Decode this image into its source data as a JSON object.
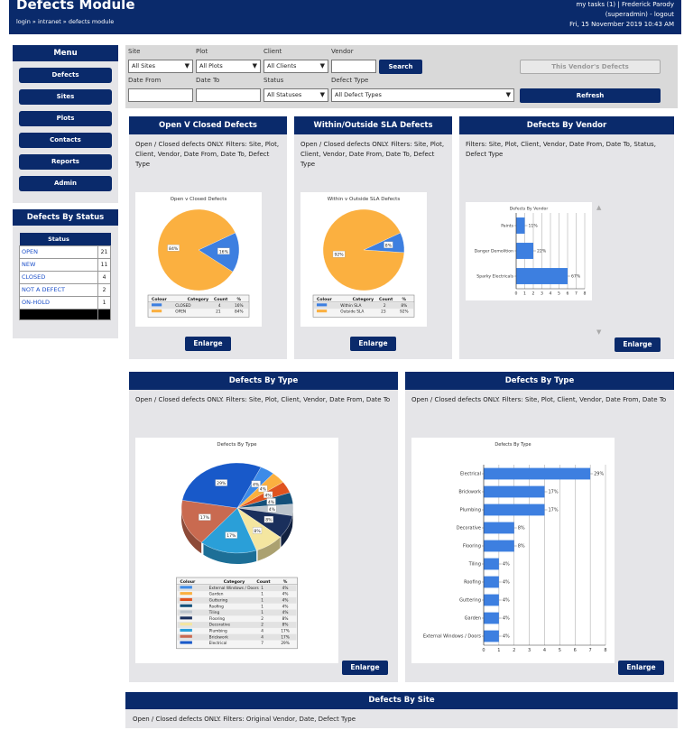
{
  "header": {
    "title": "Defects Module",
    "breadcrumb": "login » intranet » defects module",
    "tasks_user": "my tasks (1) | Frederick Parody",
    "role": "(superadmin) - logout",
    "datetime": "Fri, 15 November 2019 10:43 AM"
  },
  "menu": {
    "title": "Menu",
    "items": [
      "Defects",
      "Sites",
      "Plots",
      "Contacts",
      "Reports",
      "Admin"
    ]
  },
  "by_status": {
    "title": "Defects By Status",
    "header": "Status",
    "rows": [
      {
        "label": "OPEN",
        "count": "21"
      },
      {
        "label": "NEW",
        "count": "11"
      },
      {
        "label": "CLOSED",
        "count": "4"
      },
      {
        "label": "NOT A DEFECT",
        "count": "2"
      },
      {
        "label": "ON-HOLD",
        "count": "1"
      }
    ]
  },
  "filters": {
    "site_label": "Site",
    "site_value": "All Sites",
    "plot_label": "Plot",
    "plot_value": "All Plots",
    "client_label": "Client",
    "client_value": "All Clients",
    "vendor_label": "Vendor",
    "search": "Search",
    "vendor_defects": "This Vendor's Defects",
    "date_from_label": "Date From",
    "date_to_label": "Date To",
    "status_label": "Status",
    "status_value": "All Statuses",
    "type_label": "Defect Type",
    "type_value": "All Defect Types",
    "refresh": "Refresh"
  },
  "panels": {
    "ovc": {
      "title": "Open V Closed Defects",
      "desc": "Open / Closed defects ONLY. Filters: Site, Plot, Client, Vendor, Date From, Date To, Defect Type",
      "enlarge": "Enlarge"
    },
    "sla": {
      "title": "Within/Outside SLA Defects",
      "desc": "Open / Closed defects ONLY. Filters: Site, Plot, Client, Vendor, Date From, Date To, Defect Type",
      "enlarge": "Enlarge"
    },
    "vendor": {
      "title": "Defects By Vendor",
      "desc": "Filters: Site, Plot, Client, Vendor, Date From, Date To, Status, Defect Type",
      "enlarge": "Enlarge"
    },
    "type_pie": {
      "title": "Defects By Type",
      "desc": "Open / Closed defects ONLY. Filters: Site, Plot, Client, Vendor, Date From, Date To",
      "enlarge": "Enlarge"
    },
    "type_bar": {
      "title": "Defects By Type",
      "desc": "Open / Closed defects ONLY. Filters: Site, Plot, Client, Vendor, Date From, Date To",
      "enlarge": "Enlarge"
    },
    "site": {
      "title": "Defects By Site",
      "desc": "Open / Closed defects ONLY. Filters: Original Vendor, Date, Defect Type"
    }
  },
  "legend_headers": {
    "colour": "Colour",
    "category": "Category",
    "count": "Count",
    "pct": "%"
  },
  "chart_data": [
    {
      "type": "pie",
      "title": "Open v Closed Defects",
      "labels": [
        "CLOSED",
        "OPEN"
      ],
      "values": [
        4,
        21
      ],
      "percents": [
        "16%",
        "84%"
      ],
      "colors": [
        "#3d7fe0",
        "#fbb040"
      ]
    },
    {
      "type": "pie",
      "title": "Within v Outside SLA Defects",
      "labels": [
        "Within SLA",
        "Outside SLA"
      ],
      "values": [
        2,
        23
      ],
      "percents": [
        "8%",
        "92%"
      ],
      "colors": [
        "#3d7fe0",
        "#fbb040"
      ]
    },
    {
      "type": "bar",
      "title": "Defects By Vendor",
      "categories": [
        "Paints",
        "Danger Demolition",
        "Sparky Electricals"
      ],
      "values": [
        1,
        2,
        6
      ],
      "labels": [
        "11%",
        "22%",
        "67%"
      ],
      "xlim": [
        0,
        8
      ],
      "ticks": [
        0,
        1,
        2,
        3,
        4,
        5,
        6,
        7,
        8
      ],
      "color": "#3d7fe0"
    },
    {
      "type": "pie",
      "title": "Defects By Type",
      "labels": [
        "External Windows / Doors",
        "Garden",
        "Guttering",
        "Roofing",
        "Tiling",
        "Flooring",
        "Decorative",
        "Plumbing",
        "Brickwork",
        "Electrical"
      ],
      "values": [
        1,
        1,
        1,
        1,
        1,
        2,
        2,
        4,
        4,
        7
      ],
      "percents": [
        "4%",
        "4%",
        "4%",
        "4%",
        "4%",
        "8%",
        "8%",
        "17%",
        "17%",
        "29%"
      ],
      "colors": [
        "#3d8be8",
        "#fbb040",
        "#e0531f",
        "#14507a",
        "#bcc4cc",
        "#1a2f5c",
        "#f4e6a0",
        "#2a9fd8",
        "#c96a50",
        "#1859c9"
      ]
    },
    {
      "type": "bar",
      "title": "Defects By Type",
      "categories": [
        "Electrical",
        "Brickwork",
        "Plumbing",
        "Decorative",
        "Flooring",
        "Tiling",
        "Roofing",
        "Guttering",
        "Garden",
        "External Windows / Doors"
      ],
      "values": [
        7,
        4,
        4,
        2,
        2,
        1,
        1,
        1,
        1,
        1
      ],
      "labels": [
        "29%",
        "17%",
        "17%",
        "8%",
        "8%",
        "4%",
        "4%",
        "4%",
        "4%",
        "4%"
      ],
      "xlim": [
        0,
        8
      ],
      "ticks": [
        0,
        1,
        2,
        3,
        4,
        5,
        6,
        7,
        8
      ],
      "color": "#3d7fe0"
    }
  ]
}
